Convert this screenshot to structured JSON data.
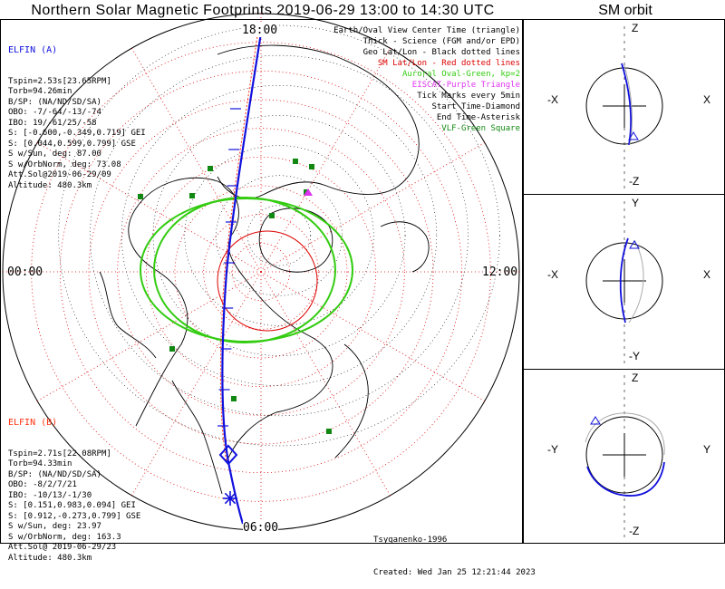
{
  "header": {
    "title": "Northern Solar Magnetic Footprints 2019-06-29 13:00 to 14:30 UTC",
    "sm_title": "SM orbit"
  },
  "colors": {
    "track": "#1010dd",
    "grid_red": "#dd0000",
    "oval_green": "#33cc11",
    "elfin_a": "#1010dd",
    "elfin_b": "#ff3311",
    "eiscat": "#dd33ee",
    "vlf": "#118811"
  },
  "elfin_a": {
    "name": "ELFIN (A)",
    "lines": [
      "Tspin=2.53s[23.65RPM]",
      "Torb=94.26min",
      "B/SP: (NA/ND/SD/SA)",
      "OBO: -7/-64/-13/-74",
      "IBO: 19/-61/25/-58",
      "S: [-0.600,-0.349,0.719] GEI",
      "S: [0.044,0.599,0.799] GSE",
      "S w/Sun, deg: 87.00",
      "S w/OrbNorm, deg: 73.08",
      "Att.Sol@2019-06-29/09",
      "Altitude: 480.3km"
    ]
  },
  "elfin_b": {
    "name": "ELFIN (B)",
    "lines": [
      "Tspin=2.71s[22.08RPM]",
      "Torb=94.33min",
      "B/SP: (NA/ND/SD/SA)",
      "OBO: -8/2/7/21",
      "IBO: -10/13/-1/30",
      "S: [0.151,0.983,0.094] GEI",
      "S: [0.912,-0.273,0.799] GSE",
      "S w/Sun, deg: 23.97",
      "S w/OrbNorm, deg: 163.3",
      "Att.Sol@ 2019-06-29/23",
      "Altitude: 480.3km"
    ]
  },
  "legend": [
    {
      "text": "Earth/Oval View Center Time (triangle)",
      "color": "#000000"
    },
    {
      "text": "Thick - Science (FGM and/or EPD)",
      "color": "#000000"
    },
    {
      "text": "Geo Lat/Lon - Black dotted lines",
      "color": "#000000"
    },
    {
      "text": "SM Lat/Lon - Red dotted lines",
      "color": "#dd0000"
    },
    {
      "text": "Auroral Oval-Green, kp=2",
      "color": "#33cc11"
    },
    {
      "text": "EISCAT-Purple Triangle",
      "color": "#dd33ee"
    },
    {
      "text": "Tick Marks every 5min",
      "color": "#000000"
    },
    {
      "text": "Start Time-Diamond",
      "color": "#000000"
    },
    {
      "text": "End Time-Asterisk",
      "color": "#000000"
    },
    {
      "text": "VLF-Green Square",
      "color": "#118811"
    }
  ],
  "map_labels": {
    "top": "18:00",
    "left": "00:00",
    "right": "12:00",
    "bottom": "06:00"
  },
  "footer": {
    "credit": "Tsyganenko-1996",
    "created": "Created: Wed Jan 25 12:21:44 2023"
  },
  "sm_panels": [
    {
      "top": "Z",
      "bottom": "-Z",
      "left": "-X",
      "right": "X"
    },
    {
      "top": "Y",
      "bottom": "-Y",
      "left": "-X",
      "right": "X"
    },
    {
      "top": "Z",
      "bottom": "-Z",
      "left": "-Y",
      "right": "Y"
    }
  ]
}
